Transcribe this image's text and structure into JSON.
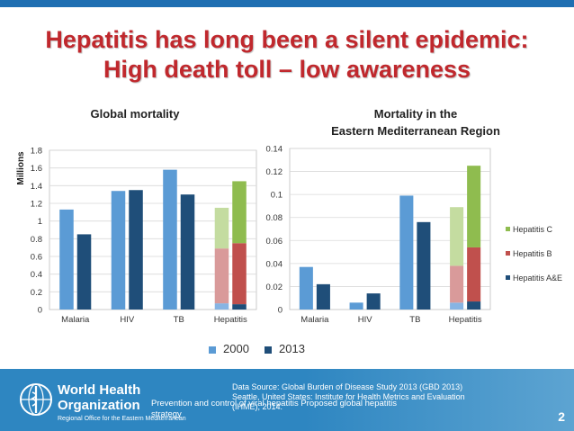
{
  "header": {
    "title_line1": "Hepatitis has long been a silent epidemic:",
    "title_line2": "High death toll – low awareness"
  },
  "colors": {
    "c2000": "#5b9bd5",
    "c2013": "#1f4e79",
    "hepA_2000": "#87b4e3",
    "hepB_2000": "#d99a9a",
    "hepC_2000": "#c4dca0",
    "hepA_2013": "#1f4e79",
    "hepB_2013": "#c0504d",
    "hepC_2013": "#8fbc4f"
  },
  "legend": {
    "item_2000": "2000",
    "item_2013": "2013"
  },
  "chart_data": [
    {
      "type": "bar",
      "title": "Global mortality",
      "ylabel": "Millions",
      "ylim": [
        0,
        1.8
      ],
      "yticks": [
        "0",
        "0.2",
        "0.4",
        "0.6",
        "0.8",
        "1",
        "1.2",
        "1.4",
        "1.6",
        "1.8"
      ],
      "categories": [
        "Malaria",
        "HIV",
        "TB",
        "Hepatitis"
      ],
      "series": [
        {
          "name": "2000",
          "values": [
            1.13,
            1.34,
            1.58,
            1.15
          ]
        },
        {
          "name": "2013",
          "values": [
            0.85,
            1.35,
            1.3,
            1.45
          ]
        }
      ],
      "hepatitis_stack": {
        "2000": {
          "Hepatitis A&E": 0.07,
          "Hepatitis B": 0.62,
          "Hepatitis C": 0.46
        },
        "2013": {
          "Hepatitis A&E": 0.06,
          "Hepatitis B": 0.69,
          "Hepatitis C": 0.7
        }
      }
    },
    {
      "type": "bar",
      "title_line1": "Mortality in the",
      "title_line2": "Eastern Mediterranean Region",
      "ylim": [
        0,
        0.14
      ],
      "yticks": [
        "0",
        "0.02",
        "0.04",
        "0.06",
        "0.08",
        "0.1",
        "0.12",
        "0.14"
      ],
      "categories": [
        "Malaria",
        "HIV",
        "TB",
        "Hepatitis"
      ],
      "series": [
        {
          "name": "2000",
          "values": [
            0.037,
            0.006,
            0.099,
            0.089
          ]
        },
        {
          "name": "2013",
          "values": [
            0.022,
            0.014,
            0.076,
            0.125
          ]
        }
      ],
      "hepatitis_stack": {
        "2000": {
          "Hepatitis A&E": 0.006,
          "Hepatitis B": 0.032,
          "Hepatitis C": 0.051
        },
        "2013": {
          "Hepatitis A&E": 0.007,
          "Hepatitis B": 0.047,
          "Hepatitis C": 0.071
        }
      },
      "legend": [
        "Hepatitis C",
        "Hepatitis B",
        "Hepatitis A&E"
      ]
    }
  ],
  "footer": {
    "org_line1": "World Health",
    "org_line2": "Organization",
    "region": "Regional Office for the Eastern Mediterranean",
    "source_line1": "Data Source: Global Burden of Disease Study 2013 (GBD 2013)",
    "source_line2": "Seattle, United States: Institute for Health Metrics and Evaluation",
    "source_line3": "(IHME), 2014.",
    "caption": "Prevention and control of viral hepatitis Proposed global hepatitis strategy",
    "page_number": "2"
  }
}
